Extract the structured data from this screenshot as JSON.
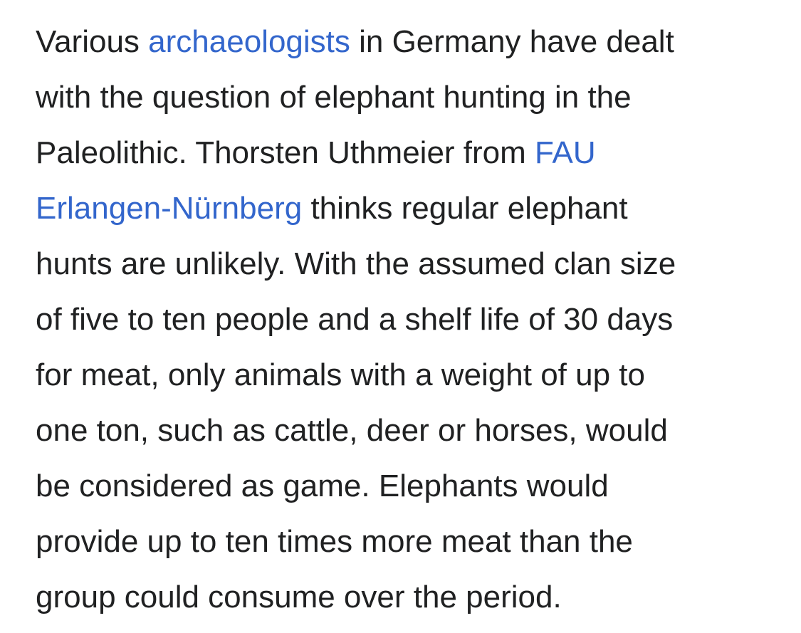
{
  "article": {
    "lines": [
      {
        "pre": "Various ",
        "link": "archaeologists",
        "post": " in Germany have dealt"
      },
      {
        "text": "with the question of elephant hunting in the"
      },
      {
        "pre": "Paleolithic. Thorsten Uthmeier from ",
        "link": "FAU",
        "post": ""
      },
      {
        "pre": "",
        "link": "Erlangen-Nürnberg",
        "post": " thinks regular elephant"
      },
      {
        "text": "hunts are unlikely. With the assumed clan size"
      },
      {
        "text": "of five to ten people and a shelf life of 30 days"
      },
      {
        "text": "for meat, only animals with a weight of up to"
      },
      {
        "text": "one ton, such as cattle, deer or horses, would"
      },
      {
        "text": "be considered as game. Elephants would"
      },
      {
        "text": "provide up to ten times more meat than the"
      },
      {
        "text": "group could consume over the period."
      }
    ]
  },
  "colors": {
    "text": "#202122",
    "link": "#3366cc",
    "background": "#ffffff"
  }
}
